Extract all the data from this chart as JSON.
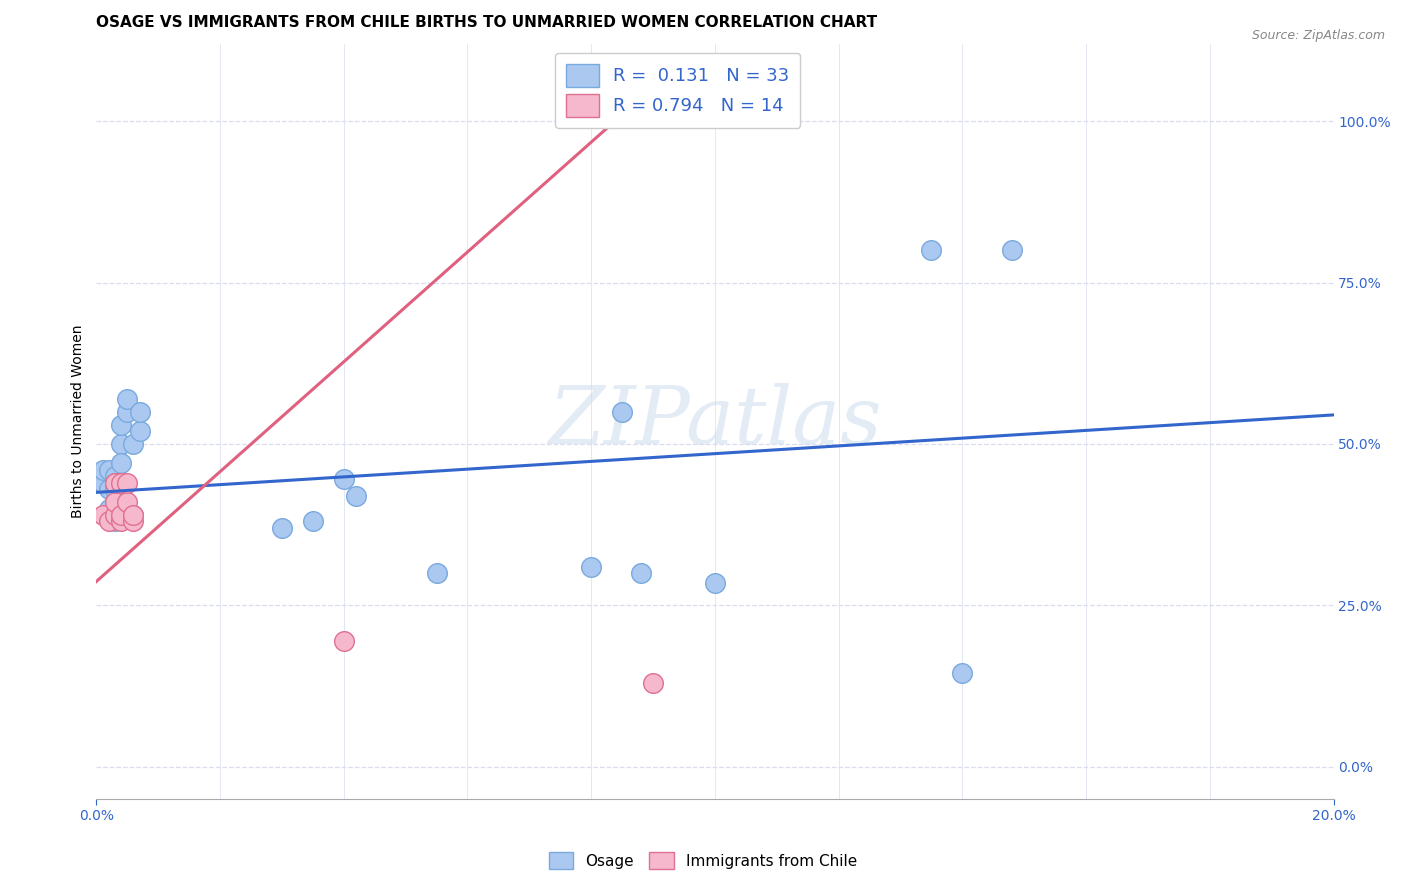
{
  "title": "OSAGE VS IMMIGRANTS FROM CHILE BIRTHS TO UNMARRIED WOMEN CORRELATION CHART",
  "source": "Source: ZipAtlas.com",
  "ylabel": "Births to Unmarried Women",
  "watermark": "ZIPatlas",
  "xlim": [
    0.0,
    0.2
  ],
  "ylim": [
    -0.05,
    1.12
  ],
  "yticks": [
    0.0,
    0.25,
    0.5,
    0.75,
    1.0
  ],
  "xticks_minor": [
    0.02,
    0.04,
    0.06,
    0.08,
    0.1,
    0.12,
    0.14,
    0.16,
    0.18
  ],
  "osage_color": "#aac8f0",
  "osage_edge": "#7aaadd",
  "chile_color": "#f5b8cc",
  "chile_edge": "#e07090",
  "trend_blue": "#3366cc",
  "trend_pink": "#e06080",
  "legend_R_blue": "0.131",
  "legend_N_blue": "33",
  "legend_R_pink": "0.794",
  "legend_N_pink": "14",
  "osage_x": [
    0.001,
    0.001,
    0.002,
    0.002,
    0.003,
    0.003,
    0.003,
    0.004,
    0.004,
    0.004,
    0.005,
    0.005,
    0.006,
    0.006,
    0.007,
    0.007,
    0.002,
    0.003,
    0.003,
    0.004,
    0.004,
    0.03,
    0.035,
    0.04,
    0.042,
    0.055,
    0.08,
    0.085,
    0.088,
    0.1,
    0.14,
    0.148,
    0.135
  ],
  "osage_y": [
    0.44,
    0.46,
    0.43,
    0.46,
    0.41,
    0.43,
    0.45,
    0.44,
    0.5,
    0.53,
    0.55,
    0.57,
    0.39,
    0.5,
    0.52,
    0.55,
    0.4,
    0.38,
    0.44,
    0.42,
    0.47,
    0.37,
    0.38,
    0.445,
    0.42,
    0.3,
    0.31,
    0.55,
    0.3,
    0.285,
    0.145,
    0.8,
    0.8
  ],
  "chile_x": [
    0.001,
    0.002,
    0.003,
    0.003,
    0.003,
    0.004,
    0.004,
    0.004,
    0.005,
    0.005,
    0.006,
    0.006,
    0.04,
    0.09
  ],
  "chile_y": [
    0.39,
    0.38,
    0.39,
    0.41,
    0.44,
    0.38,
    0.39,
    0.44,
    0.41,
    0.44,
    0.38,
    0.39,
    0.195,
    0.13
  ],
  "blue_trend_x": [
    0.0,
    0.2
  ],
  "blue_trend_y": [
    0.425,
    0.545
  ],
  "pink_trend_x": [
    -0.002,
    0.085
  ],
  "pink_trend_y": [
    0.27,
    1.01
  ],
  "background_color": "#ffffff",
  "grid_color": "#d8ddf0",
  "title_fontsize": 11,
  "source_fontsize": 9,
  "label_fontsize": 10,
  "tick_fontsize": 10,
  "legend_fontsize": 13
}
